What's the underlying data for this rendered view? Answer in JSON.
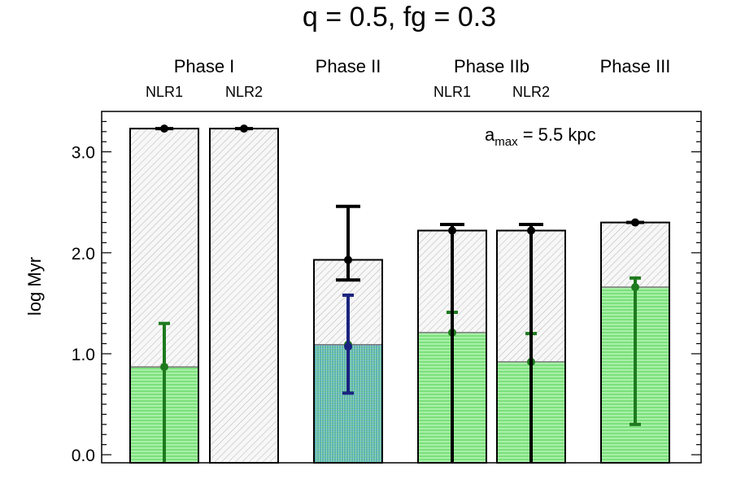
{
  "chart_data": {
    "type": "bar",
    "title": "q = 0.5, fg = 0.3",
    "ylabel": "log Myr",
    "ylim": [
      -0.08,
      3.4
    ],
    "yticks": [
      {
        "value": 0.0,
        "label": "0.0"
      },
      {
        "value": 1.0,
        "label": "1.0"
      },
      {
        "value": 2.0,
        "label": "2.0"
      },
      {
        "value": 3.0,
        "label": "3.0"
      }
    ],
    "annotation": {
      "prefix": "a",
      "subscript": "max",
      "text": " = 5.5 kpc"
    },
    "phases": [
      {
        "label": "Phase I",
        "sublabels": [
          "NLR1",
          "NLR2"
        ],
        "bars": [
          0,
          1
        ]
      },
      {
        "label": "Phase II",
        "sublabels": [],
        "bars": [
          2
        ]
      },
      {
        "label": "Phase IIb",
        "sublabels": [
          "NLR1",
          "NLR2"
        ],
        "bars": [
          3,
          4
        ]
      },
      {
        "label": "Phase III",
        "sublabels": [],
        "bars": [
          5
        ]
      }
    ],
    "bars": [
      {
        "total": 3.23,
        "total_err": [
          3.23,
          3.23
        ],
        "lower": 0.87,
        "lower_err": [
          -0.08,
          1.3
        ],
        "lower_style": "green"
      },
      {
        "total": 3.23,
        "total_err": [
          3.23,
          3.23
        ],
        "lower": null,
        "lower_err": null,
        "lower_style": "none"
      },
      {
        "total": 1.93,
        "total_err": [
          1.73,
          2.46
        ],
        "lower": 1.09,
        "lower_err": [
          0.61,
          1.58
        ],
        "lower_style": "blue-green",
        "lower_point": 1.07
      },
      {
        "total": 2.22,
        "total_err": [
          -0.08,
          2.28
        ],
        "lower": 1.21,
        "lower_err": [
          -0.08,
          1.41
        ],
        "lower_style": "green"
      },
      {
        "total": 2.22,
        "total_err": [
          -0.08,
          2.28
        ],
        "lower": 0.92,
        "lower_err": [
          -0.08,
          1.2
        ],
        "lower_style": "green"
      },
      {
        "total": 2.3,
        "total_err": [
          2.3,
          2.3
        ],
        "lower": 1.66,
        "lower_err": [
          0.3,
          1.75
        ],
        "lower_style": "green"
      }
    ],
    "colors": {
      "total": "#000000",
      "green": "#1e7a1e",
      "blue": "#1a237e",
      "green_fill": "#7ee27e",
      "hatch": "#bbbbbb"
    }
  }
}
